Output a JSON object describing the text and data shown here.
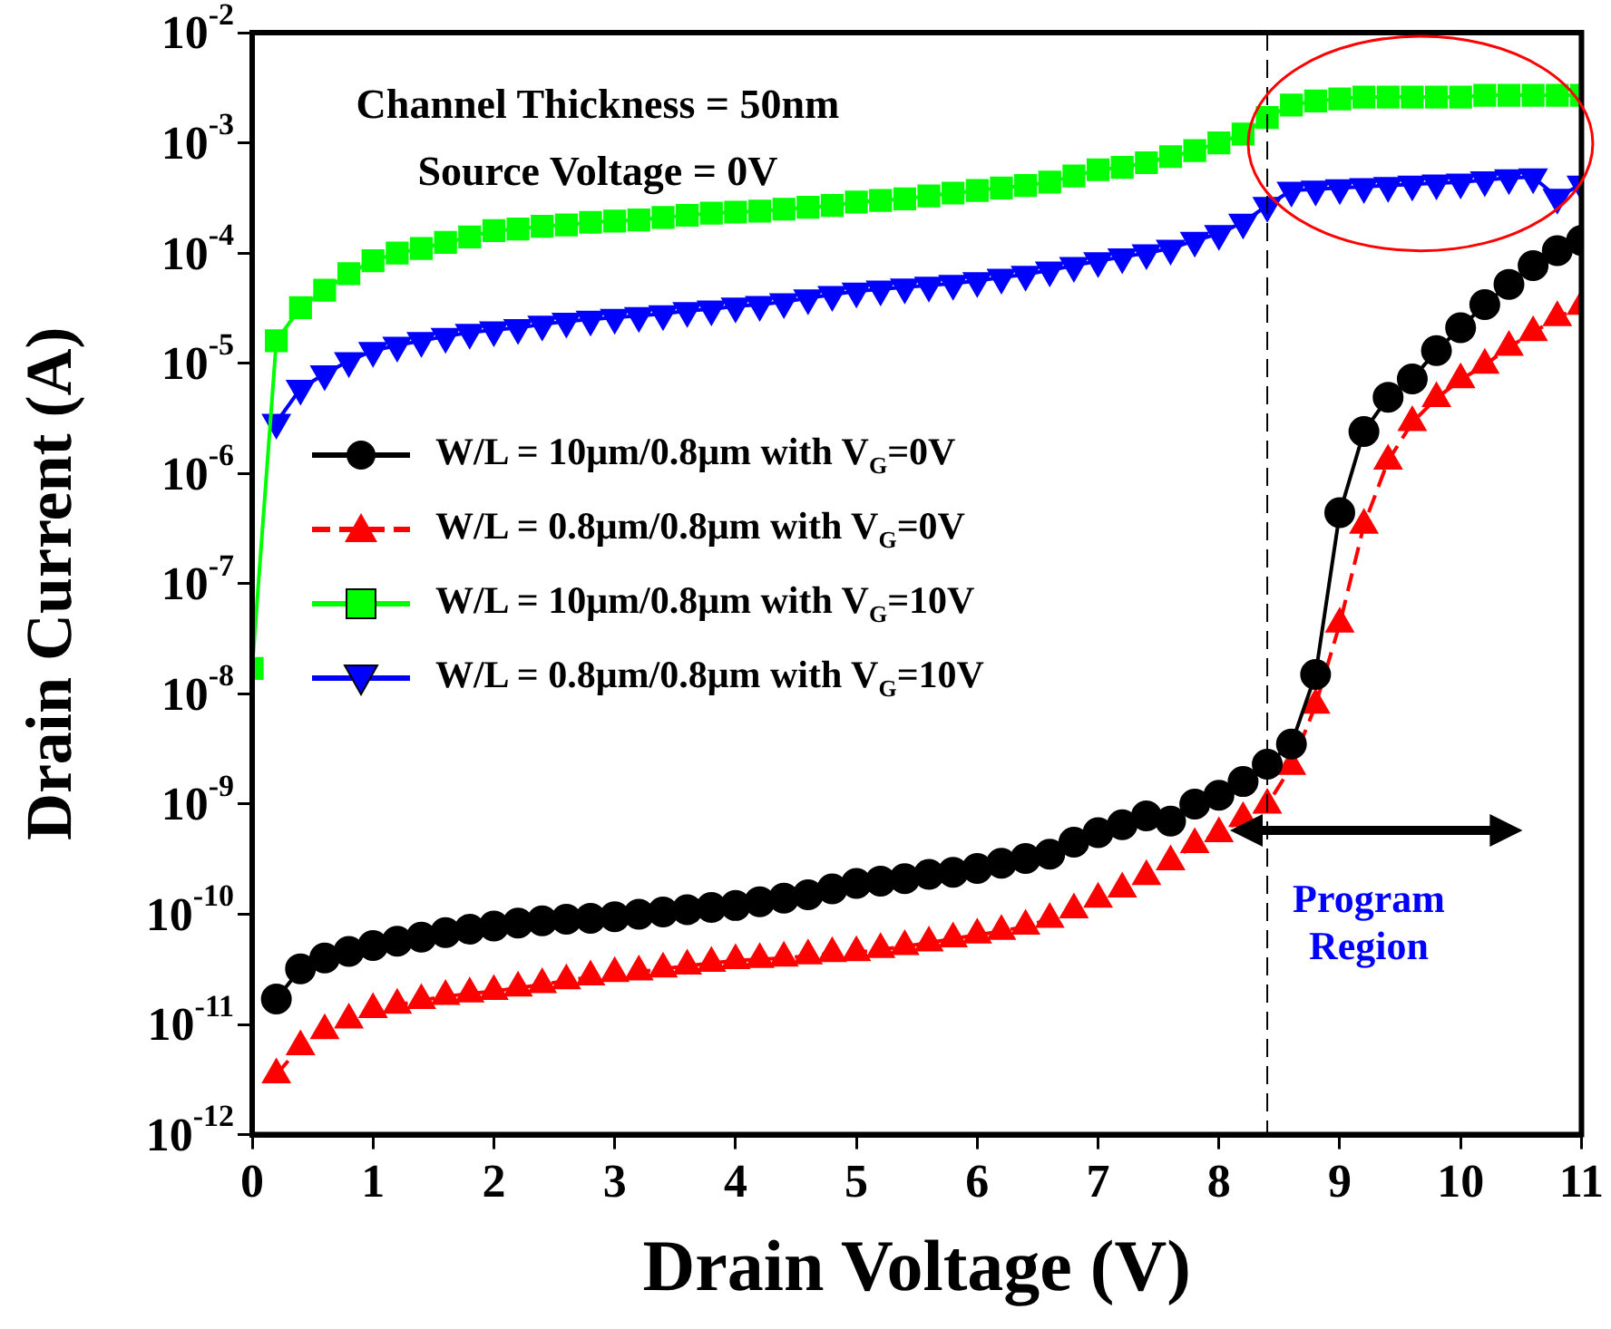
{
  "chart_data": {
    "type": "line",
    "xlabel": "Drain Voltage (V)",
    "ylabel": "Drain Current (A)",
    "x": [
      0,
      0.2,
      0.4,
      0.6,
      0.8,
      1,
      1.2,
      1.4,
      1.6,
      1.8,
      2,
      2.2,
      2.4,
      2.6,
      2.8,
      3,
      3.2,
      3.4,
      3.6,
      3.8,
      4,
      4.2,
      4.4,
      4.6,
      4.8,
      5,
      5.2,
      5.4,
      5.6,
      5.8,
      6,
      6.2,
      6.4,
      6.6,
      6.8,
      7,
      7.2,
      7.4,
      7.6,
      7.8,
      8,
      8.2,
      8.4,
      8.6,
      8.8,
      9,
      9.2,
      9.4,
      9.6,
      9.8,
      10,
      10.2,
      10.4,
      10.6,
      10.8,
      11
    ],
    "series": [
      {
        "name": "W/L = 10μm/0.8μm with V$_{G}$=0V",
        "color": "#000000",
        "marker": "circle",
        "line_style": "solid",
        "values": [
          null,
          1.7e-11,
          3.2e-11,
          4e-11,
          4.6e-11,
          5.2e-11,
          5.7e-11,
          6.2e-11,
          6.8e-11,
          7.3e-11,
          7.8e-11,
          8.3e-11,
          8.7e-11,
          9e-11,
          9.2e-11,
          9.5e-11,
          1e-10,
          1.05e-10,
          1.1e-10,
          1.15e-10,
          1.2e-10,
          1.3e-10,
          1.4e-10,
          1.5e-10,
          1.7e-10,
          1.9e-10,
          2e-10,
          2.1e-10,
          2.3e-10,
          2.4e-10,
          2.6e-10,
          2.9e-10,
          3.2e-10,
          3.5e-10,
          4.5e-10,
          5.5e-10,
          6.5e-10,
          7.8e-10,
          7e-10,
          1e-09,
          1.2e-09,
          1.6e-09,
          2.3e-09,
          3.5e-09,
          1.5e-08,
          4.4e-07,
          2.4e-06,
          4.9e-06,
          7.2e-06,
          1.3e-05,
          2.1e-05,
          3.4e-05,
          5.2e-05,
          7.7e-05,
          0.000105,
          0.00013
        ]
      },
      {
        "name": "W/L = 0.8μm/0.8μm with V$_{G}$=0V",
        "color": "#ff0000",
        "marker": "triangle",
        "line_style": "dashed",
        "values": [
          null,
          3.5e-12,
          6.3e-12,
          8.8e-12,
          1.1e-11,
          1.37e-11,
          1.5e-11,
          1.65e-11,
          1.8e-11,
          1.9e-11,
          2e-11,
          2.15e-11,
          2.3e-11,
          2.5e-11,
          2.7e-11,
          2.9e-11,
          3e-11,
          3.2e-11,
          3.4e-11,
          3.6e-11,
          3.8e-11,
          3.9e-11,
          4e-11,
          4.2e-11,
          4.4e-11,
          4.5e-11,
          4.8e-11,
          5.1e-11,
          5.5e-11,
          6e-11,
          6.5e-11,
          7e-11,
          7.8e-11,
          9e-11,
          1.1e-10,
          1.37e-10,
          1.7e-10,
          2.2e-10,
          3e-10,
          4.3e-10,
          5.4e-10,
          7.4e-10,
          9.8e-10,
          2.2e-09,
          7.9e-09,
          4.3e-08,
          3.4e-07,
          1.3e-06,
          2.9e-06,
          4.8e-06,
          7.1e-06,
          9.6e-06,
          1.4e-05,
          1.9e-05,
          2.6e-05,
          3.3e-05
        ]
      },
      {
        "name": "W/L = 10μm/0.8μm with V$_{G}$=10V",
        "color": "#00ff00",
        "marker": "square",
        "line_style": "solid",
        "values": [
          1.7e-08,
          1.6e-05,
          3.2e-05,
          4.6e-05,
          6.5e-05,
          8.5e-05,
          0.0001,
          0.00011,
          0.000125,
          0.00014,
          0.00016,
          0.000165,
          0.000175,
          0.00018,
          0.00019,
          0.000195,
          0.0002,
          0.00021,
          0.00022,
          0.00023,
          0.000235,
          0.00024,
          0.00025,
          0.00026,
          0.00027,
          0.00029,
          0.0003,
          0.00031,
          0.00033,
          0.00035,
          0.00037,
          0.00039,
          0.00041,
          0.00044,
          0.0005,
          0.00057,
          0.0006,
          0.00066,
          0.00075,
          0.00085,
          0.001,
          0.0012,
          0.0017,
          0.0022,
          0.0024,
          0.0025,
          0.0026,
          0.0026,
          0.0026,
          0.0026,
          0.0026,
          0.0027,
          0.0027,
          0.0027,
          0.0027,
          0.0027
        ]
      },
      {
        "name": "W/L = 0.8μm/0.8μm with V$_{G}$=10V",
        "color": "#0000ff",
        "marker": "triangle-down",
        "line_style": "solid",
        "values": [
          null,
          2.9e-06,
          5.9e-06,
          8e-06,
          1.05e-05,
          1.3e-05,
          1.45e-05,
          1.6e-05,
          1.75e-05,
          1.9e-05,
          2e-05,
          2.1e-05,
          2.25e-05,
          2.4e-05,
          2.5e-05,
          2.6e-05,
          2.7e-05,
          2.8e-05,
          3e-05,
          3.1e-05,
          3.3e-05,
          3.4e-05,
          3.6e-05,
          3.9e-05,
          4.2e-05,
          4.5e-05,
          4.7e-05,
          4.9e-05,
          5.1e-05,
          5.3e-05,
          5.6e-05,
          6e-05,
          6.4e-05,
          7e-05,
          7.7e-05,
          8.5e-05,
          9.2e-05,
          0.0001,
          0.00011,
          0.00013,
          0.00015,
          0.00019,
          0.00027,
          0.00037,
          0.00038,
          0.00039,
          0.0004,
          0.00041,
          0.00042,
          0.00043,
          0.00044,
          0.00046,
          0.00048,
          0.00049,
          0.00032,
          0.00042
        ]
      }
    ],
    "log": "y",
    "xlim": [
      0,
      11
    ],
    "xticks": [
      0,
      1,
      2,
      3,
      4,
      5,
      6,
      7,
      8,
      9,
      10,
      11
    ],
    "ylim": [
      1e-12,
      0.01
    ],
    "yticks": [
      {
        "value": 1e-12,
        "label": "10$^{-12}$"
      },
      {
        "value": 1e-11,
        "label": "10$^{-11}$"
      },
      {
        "value": 1e-10,
        "label": "10$^{-10}$"
      },
      {
        "value": 1e-09,
        "label": "10$^{-9}$"
      },
      {
        "value": 1e-08,
        "label": "10$^{-8}$"
      },
      {
        "value": 1e-07,
        "label": "10$^{-7}$"
      },
      {
        "value": 1e-06,
        "label": "10$^{-6}$"
      },
      {
        "value": 1e-05,
        "label": "10$^{-5}$"
      },
      {
        "value": 0.0001,
        "label": "10$^{-4}$"
      },
      {
        "value": 0.001,
        "label": "10$^{-3}$"
      },
      {
        "value": 0.01,
        "label": "10$^{-2}$"
      }
    ],
    "ref_lines": [
      {
        "axis": "x",
        "value": 8.4,
        "color": "#000000",
        "line_style": "dashed"
      }
    ],
    "annotations": [
      "Channel Thickness = 50nm",
      "Source Voltage = 0V",
      "Program Region"
    ],
    "legend": "left"
  }
}
